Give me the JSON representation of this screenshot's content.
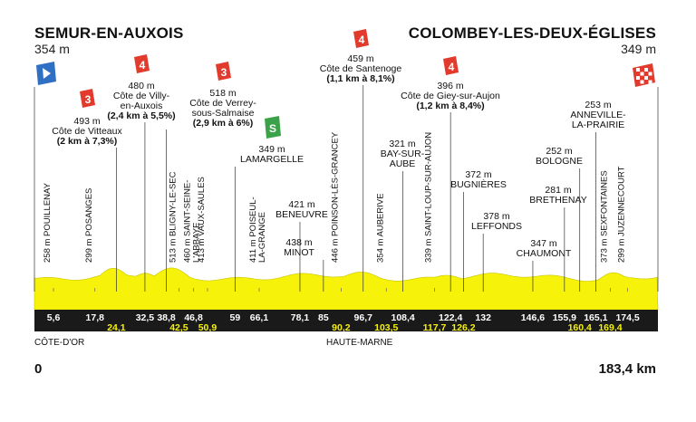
{
  "start": {
    "city": "SEMUR-EN-AUXOIS",
    "altitude": "354 m"
  },
  "finish": {
    "city": "COLOMBEY-LES-DEUX-ÉGLISES",
    "altitude": "349 m"
  },
  "distance": {
    "start_label": "0",
    "total_label": "183,4 km",
    "total_km": 183.4
  },
  "regions": [
    "CÔTE-D'OR",
    "HAUTE-MARNE"
  ],
  "colors": {
    "profile_fill": "#f6f20a",
    "bar": "#1a1a1a",
    "cat3": "#e23a2c",
    "cat4": "#e23a2c",
    "sprint": "#3aa34a",
    "start_flag": "#2f6fc4"
  },
  "km_markers": [
    {
      "km": 5.6,
      "label": "5,6",
      "row": "top"
    },
    {
      "km": 17.8,
      "label": "17,8",
      "row": "top"
    },
    {
      "km": 24.1,
      "label": "24,1",
      "row": "bottom"
    },
    {
      "km": 32.5,
      "label": "32,5",
      "row": "top"
    },
    {
      "km": 38.8,
      "label": "38,8",
      "row": "top"
    },
    {
      "km": 42.5,
      "label": "42,5",
      "row": "bottom"
    },
    {
      "km": 46.8,
      "label": "46,8",
      "row": "top"
    },
    {
      "km": 50.9,
      "label": "50,9",
      "row": "bottom"
    },
    {
      "km": 59,
      "label": "59",
      "row": "top"
    },
    {
      "km": 66.1,
      "label": "66,1",
      "row": "top"
    },
    {
      "km": 78.1,
      "label": "78,1",
      "row": "top"
    },
    {
      "km": 85,
      "label": "85",
      "row": "top"
    },
    {
      "km": 90.2,
      "label": "90,2",
      "row": "bottom"
    },
    {
      "km": 96.7,
      "label": "96,7",
      "row": "top"
    },
    {
      "km": 103.5,
      "label": "103,5",
      "row": "bottom"
    },
    {
      "km": 108.4,
      "label": "108,4",
      "row": "top"
    },
    {
      "km": 117.7,
      "label": "117,7",
      "row": "bottom"
    },
    {
      "km": 122.4,
      "label": "122,4",
      "row": "top"
    },
    {
      "km": 126.2,
      "label": "126,2",
      "row": "bottom"
    },
    {
      "km": 132,
      "label": "132",
      "row": "top"
    },
    {
      "km": 146.6,
      "label": "146,6",
      "row": "top"
    },
    {
      "km": 155.9,
      "label": "155,9",
      "row": "top"
    },
    {
      "km": 160.4,
      "label": "160,4",
      "row": "bottom"
    },
    {
      "km": 165.1,
      "label": "165,1",
      "row": "top"
    },
    {
      "km": 169.4,
      "label": "169,4",
      "row": "bottom"
    },
    {
      "km": 174.5,
      "label": "174,5",
      "row": "top"
    }
  ],
  "vertical_places": [
    {
      "km": 5.6,
      "label": "258 m POUILLENAY"
    },
    {
      "km": 17.8,
      "label": "299 m POSANGES"
    },
    {
      "km": 42.5,
      "label": "513 m BLIGNY-LE-SEC"
    },
    {
      "km": 46.8,
      "label": "460 m SAINT-SEINE-\nL'ABBAYE"
    },
    {
      "km": 50.9,
      "label": "413 m VAUX-SAULES"
    },
    {
      "km": 66.1,
      "label": "411 m POISEUL-\nLA-GRANGE"
    },
    {
      "km": 90.2,
      "label": "446 m POINSON-LÈS-GRANCEY"
    },
    {
      "km": 103.5,
      "label": "354 m AUBERIVE"
    },
    {
      "km": 117.7,
      "label": "339 m SAINT-LOUP-SUR-AUJON"
    },
    {
      "km": 169.4,
      "label": "373 m SEXFONTAINES"
    },
    {
      "km": 174.5,
      "label": "299 m JUZENNECOURT"
    }
  ],
  "places": [
    {
      "km": 59,
      "altitude": "349 m",
      "name": "LAMARGELLE",
      "marker": "sprint"
    },
    {
      "km": 78.1,
      "altitude": "421 m",
      "name": "BENEUVRE",
      "marker": ""
    },
    {
      "km": 85,
      "altitude": "438 m",
      "name": "MINOT",
      "marker": ""
    },
    {
      "km": 108.4,
      "altitude": "321 m",
      "name": "BAY-SUR-\nAUBE",
      "marker": ""
    },
    {
      "km": 126.2,
      "altitude": "372 m",
      "name": "BUGNIÈRES",
      "marker": ""
    },
    {
      "km": 132,
      "altitude": "378 m",
      "name": "LEFFONDS",
      "marker": ""
    },
    {
      "km": 146.6,
      "altitude": "347 m",
      "name": "CHAUMONT",
      "marker": ""
    },
    {
      "km": 155.9,
      "altitude": "281 m",
      "name": "BRETHENAY",
      "marker": ""
    },
    {
      "km": 160.4,
      "altitude": "252 m",
      "name": "BOLOGNE",
      "marker": ""
    },
    {
      "km": 165.1,
      "altitude": "253 m",
      "name": "ANNEVILLE-\nLA-PRAIRIE",
      "marker": ""
    }
  ],
  "climbs": [
    {
      "km": 24.1,
      "category": "3",
      "altitude": "493 m",
      "name": "Côte de Vitteaux",
      "detail": "(2 km à 7,3%)"
    },
    {
      "km": 32.5,
      "category": "4",
      "altitude": "480 m",
      "name": "Côte de Villy-\nen-Auxois",
      "detail": "(2,4 km à 5,5%)"
    },
    {
      "km": 38.8,
      "category": "3",
      "altitude": "518 m",
      "name": "Côte de Verrey-\nsous-Salmaise",
      "detail": "(2,9 km à 6%)"
    },
    {
      "km": 96.7,
      "category": "4",
      "altitude": "459 m",
      "name": "Côte de Santenoge",
      "detail": "(1,1 km à 8,1%)"
    },
    {
      "km": 122.4,
      "category": "4",
      "altitude": "396 m",
      "name": "Côte de Giey-sur-Aujon",
      "detail": "(1,2 km à 8,4%)"
    }
  ],
  "sprint_label": "S"
}
